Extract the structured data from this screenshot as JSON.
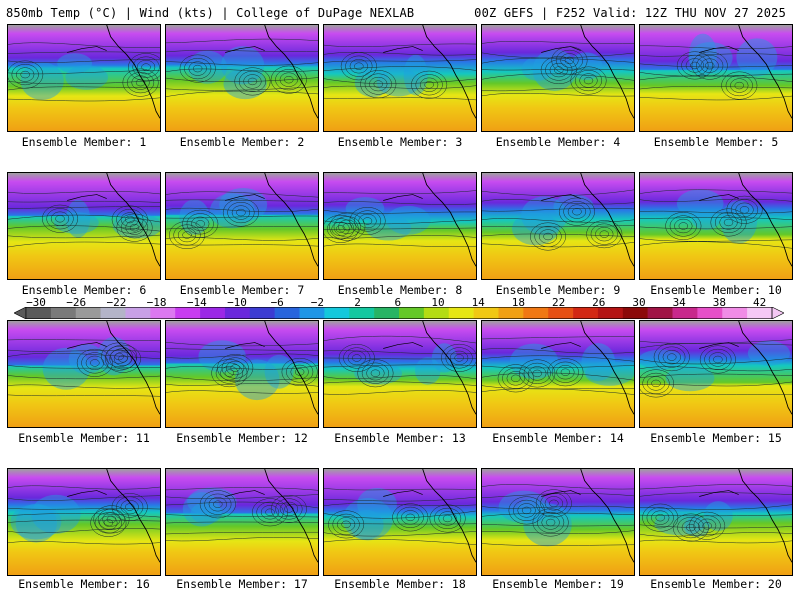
{
  "header": {
    "left": "850mb Temp (°C) | Wind (kts) | College of DuPage NEXLAB",
    "right": "00Z GEFS | F252 Valid: 12Z THU NOV 27 2025"
  },
  "members": [
    {
      "label": "Ensemble Member: 1",
      "seed": 1
    },
    {
      "label": "Ensemble Member: 2",
      "seed": 2
    },
    {
      "label": "Ensemble Member: 3",
      "seed": 3
    },
    {
      "label": "Ensemble Member: 4",
      "seed": 4
    },
    {
      "label": "Ensemble Member: 5",
      "seed": 5
    },
    {
      "label": "Ensemble Member: 6",
      "seed": 6
    },
    {
      "label": "Ensemble Member: 7",
      "seed": 7
    },
    {
      "label": "Ensemble Member: 8",
      "seed": 8
    },
    {
      "label": "Ensemble Member: 9",
      "seed": 9
    },
    {
      "label": "Ensemble Member: 10",
      "seed": 10
    },
    {
      "label": "Ensemble Member: 11",
      "seed": 11
    },
    {
      "label": "Ensemble Member: 12",
      "seed": 12
    },
    {
      "label": "Ensemble Member: 13",
      "seed": 13
    },
    {
      "label": "Ensemble Member: 14",
      "seed": 14
    },
    {
      "label": "Ensemble Member: 15",
      "seed": 15
    },
    {
      "label": "Ensemble Member: 16",
      "seed": 16
    },
    {
      "label": "Ensemble Member: 17",
      "seed": 17
    },
    {
      "label": "Ensemble Member: 18",
      "seed": 18
    },
    {
      "label": "Ensemble Member: 19",
      "seed": 19
    },
    {
      "label": "Ensemble Member: 20",
      "seed": 20
    }
  ],
  "colorbar": {
    "ticks": [
      "−30",
      "−26",
      "−22",
      "−18",
      "−14",
      "−10",
      "−6",
      "−2",
      "2",
      "6",
      "10",
      "14",
      "18",
      "22",
      "26",
      "30",
      "34",
      "38",
      "42"
    ],
    "colors": [
      "#5a5a5a",
      "#7a7a7a",
      "#9a9a9a",
      "#b4b4c8",
      "#c8a0e6",
      "#dc78f0",
      "#c83cf0",
      "#9b28e6",
      "#6a28dc",
      "#3c3cd2",
      "#2864dc",
      "#1e96e6",
      "#14c8dc",
      "#14c8a0",
      "#28b464",
      "#64c828",
      "#b4dc14",
      "#e6e614",
      "#f0c814",
      "#f0a014",
      "#f07814",
      "#e65014",
      "#d22814",
      "#b41414",
      "#8c0a0a",
      "#a01446",
      "#c8288c",
      "#e650c8",
      "#f08ce6",
      "#f5c8f5"
    ]
  }
}
